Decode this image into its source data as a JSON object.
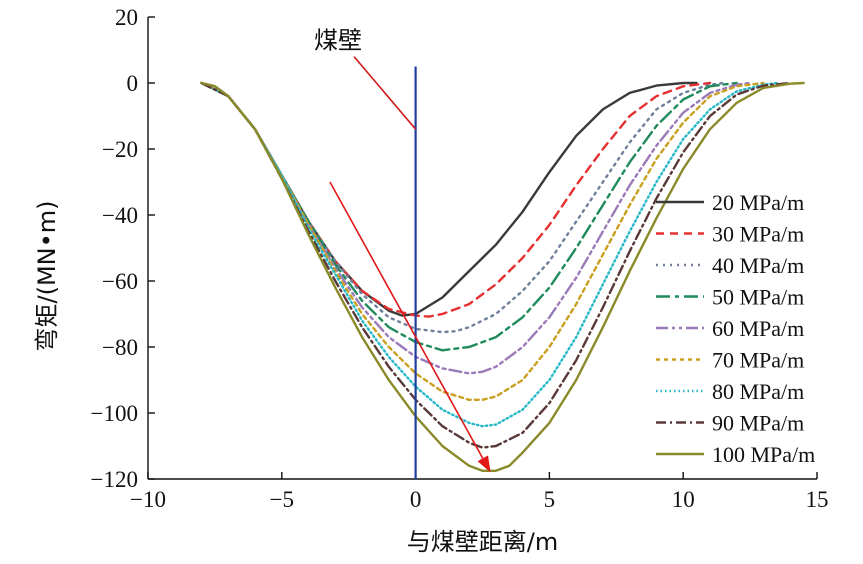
{
  "chart_data": {
    "type": "line",
    "title": "",
    "xlabel": "与煤壁距离/m",
    "ylabel": "弯矩/(MN•m)",
    "xlim": [
      -10,
      15
    ],
    "ylim": [
      -120,
      20
    ],
    "xticks": [
      "−10",
      "−5",
      "0",
      "5",
      "10",
      "15"
    ],
    "xtick_values": [
      -10,
      -5,
      0,
      5,
      10,
      15
    ],
    "yticks": [
      "20",
      "0",
      "−20",
      "−40",
      "−60",
      "−80",
      "−100",
      "−120"
    ],
    "ytick_values": [
      20,
      0,
      -20,
      -40,
      -60,
      -80,
      -100,
      -120
    ],
    "grid": false,
    "legend_position": "right",
    "series": [
      {
        "name": "20 MPa/m",
        "color": "#3a3a3a",
        "dash": "solid",
        "x": [
          -8,
          -7.5,
          -7,
          -6,
          -5,
          -4,
          -3,
          -2,
          -1,
          -0.5,
          0,
          1,
          2,
          3,
          4,
          5,
          6,
          7,
          8,
          9,
          10,
          10.5
        ],
        "y": [
          0,
          -1,
          -4,
          -14,
          -28,
          -42,
          -54,
          -63,
          -69,
          -70.5,
          -70,
          -65,
          -57,
          -49,
          -39,
          -27,
          -16,
          -8,
          -3,
          -0.8,
          0,
          0
        ]
      },
      {
        "name": "30 MPa/m",
        "color": "#e53030",
        "dash": "8,6",
        "x": [
          -8,
          -7,
          -6,
          -5,
          -4,
          -3,
          -2,
          -1,
          0,
          0.5,
          1,
          2,
          3,
          4,
          5,
          6,
          7,
          8,
          9,
          10,
          11
        ],
        "y": [
          0,
          -4,
          -14,
          -28,
          -42,
          -54,
          -63,
          -68.5,
          -70.5,
          -70.8,
          -70,
          -67,
          -61,
          -53,
          -43,
          -31,
          -20,
          -10,
          -4,
          -1,
          0
        ]
      },
      {
        "name": "40 MPa/m",
        "color": "#6f7f9b",
        "dash": "2,5",
        "x": [
          -8,
          -7,
          -6,
          -5,
          -4,
          -3,
          -2,
          -1,
          0,
          1,
          1.5,
          2,
          3,
          4,
          5,
          6,
          7,
          8,
          9,
          10,
          11,
          11.5
        ],
        "y": [
          0,
          -4,
          -14,
          -28,
          -42,
          -54,
          -64,
          -71,
          -74.5,
          -75.5,
          -75.2,
          -74,
          -70,
          -63,
          -54,
          -42,
          -30,
          -18,
          -8,
          -3,
          -0.5,
          0
        ]
      },
      {
        "name": "50 MPa/m",
        "color": "#1f8a5a",
        "dash": "14,5,4,5",
        "x": [
          -8,
          -7,
          -6,
          -5,
          -4,
          -3,
          -2,
          -1,
          0,
          1,
          2,
          3,
          4,
          5,
          6,
          7,
          8,
          9,
          10,
          11,
          12
        ],
        "y": [
          0,
          -4,
          -14,
          -28,
          -42,
          -55,
          -66,
          -74,
          -78.5,
          -81,
          -80,
          -77,
          -71,
          -62,
          -50,
          -37,
          -24,
          -13,
          -5,
          -1,
          0
        ]
      },
      {
        "name": "60 MPa/m",
        "color": "#9a7ab8",
        "dash": "12,4,3,4,3,4",
        "x": [
          -8,
          -7,
          -6,
          -5,
          -4,
          -3,
          -2,
          -1,
          0,
          1,
          2,
          2.5,
          3,
          4,
          5,
          6,
          7,
          8,
          9,
          10,
          11,
          12,
          12.5
        ],
        "y": [
          0,
          -4,
          -14,
          -28,
          -43,
          -56,
          -68,
          -77,
          -83,
          -86.5,
          -88,
          -87.5,
          -86,
          -80,
          -71,
          -59,
          -45,
          -31,
          -19,
          -9,
          -3,
          -0.5,
          0
        ]
      },
      {
        "name": "70 MPa/m",
        "color": "#c9a020",
        "dash": "4,4",
        "x": [
          -8,
          -7,
          -6,
          -5,
          -4,
          -3,
          -2,
          -1,
          0,
          1,
          2,
          2.5,
          3,
          4,
          5,
          6,
          7,
          8,
          9,
          10,
          11,
          12,
          13
        ],
        "y": [
          0,
          -4,
          -14,
          -28,
          -43,
          -57,
          -70,
          -80,
          -88,
          -93.5,
          -96,
          -96,
          -95,
          -90,
          -80,
          -67,
          -52,
          -37,
          -23,
          -12,
          -4,
          -1,
          0
        ]
      },
      {
        "name": "80 MPa/m",
        "color": "#27b8c8",
        "dash": "1.5,3",
        "x": [
          -8,
          -7,
          -6,
          -5,
          -4,
          -3,
          -2,
          -1,
          0,
          1,
          2,
          2.5,
          3,
          4,
          5,
          6,
          7,
          8,
          9,
          10,
          11,
          12,
          13,
          13.5
        ],
        "y": [
          0,
          -4,
          -14,
          -28,
          -44,
          -58,
          -72,
          -83,
          -92,
          -99,
          -103,
          -104,
          -103.5,
          -99,
          -90,
          -77,
          -61,
          -45,
          -30,
          -17,
          -8,
          -2.5,
          -0.5,
          0
        ]
      },
      {
        "name": "90 MPa/m",
        "color": "#5a3838",
        "dash": "10,4,2,4",
        "x": [
          -8,
          -7,
          -6,
          -5,
          -4,
          -3,
          -2,
          -1,
          0,
          1,
          2,
          2.5,
          3,
          4,
          5,
          6,
          7,
          8,
          9,
          10,
          11,
          12,
          13,
          14
        ],
        "y": [
          0,
          -4,
          -14,
          -29,
          -45,
          -60,
          -74,
          -86,
          -96,
          -104,
          -109,
          -110.5,
          -110,
          -106,
          -97,
          -84,
          -68,
          -51,
          -35,
          -21,
          -10,
          -3.5,
          -0.8,
          0
        ]
      },
      {
        "name": "100 MPa/m",
        "color": "#8a8a2a",
        "dash": "solid",
        "x": [
          -8,
          -7.5,
          -7,
          -6,
          -5,
          -4,
          -3,
          -2,
          -1,
          0,
          1,
          2,
          2.5,
          3,
          3.5,
          4,
          5,
          6,
          7,
          8,
          9,
          10,
          11,
          12,
          13,
          14,
          14.5
        ],
        "y": [
          0,
          -1,
          -4,
          -14,
          -29,
          -46,
          -62,
          -77,
          -90,
          -101,
          -110,
          -116,
          -117.5,
          -117.5,
          -116,
          -112,
          -103,
          -90,
          -74,
          -57,
          -41,
          -26,
          -14,
          -6,
          -1.5,
          -0.2,
          0
        ]
      }
    ],
    "vertical_line": {
      "x": 0,
      "color": "#1f3f9f"
    },
    "annotation": {
      "text": "煤壁",
      "color": "#d01818",
      "pointer_from": [
        -2.3,
        8
      ],
      "pointer_to": [
        0,
        -14
      ]
    },
    "trend_arrow": {
      "color": "#e01818",
      "from": [
        -3.2,
        -30
      ],
      "to": [
        2.8,
        -118
      ]
    }
  }
}
